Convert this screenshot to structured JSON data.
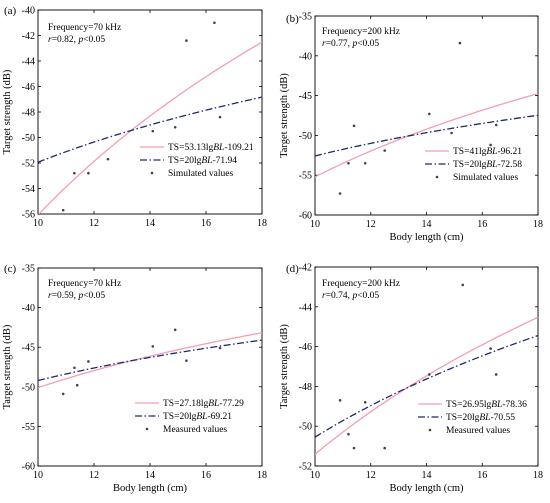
{
  "chart_data": [
    {
      "panel_label": "(a)",
      "type": "scatter",
      "annotations": [
        "Frequency=70 kHz",
        "r=0.82, p<0.05"
      ],
      "xlabel": "",
      "ylabel": "Target strength (dB)",
      "xlim": [
        10,
        18
      ],
      "ylim": [
        -56,
        -40
      ],
      "xticks": [
        10,
        12,
        14,
        16,
        18
      ],
      "yticks": [
        -56,
        -54,
        -52,
        -50,
        -48,
        -46,
        -44,
        -42,
        -40
      ],
      "lines": [
        {
          "name": "TS=53.13lgBL-109.21",
          "slope": 53.13,
          "intercept": -109.21,
          "color": "#f0a0b0",
          "dash": "solid"
        },
        {
          "name": "TS=20lgBL-71.94",
          "slope": 20,
          "intercept": -71.94,
          "color": "#1f2a6b",
          "dash": "dashdot"
        }
      ],
      "points_name": "Simulated values",
      "points": [
        [
          10.9,
          -55.7
        ],
        [
          11.3,
          -52.8
        ],
        [
          11.8,
          -52.8
        ],
        [
          12.5,
          -51.7
        ],
        [
          14.1,
          -49.5
        ],
        [
          14.9,
          -49.2
        ],
        [
          15.3,
          -42.4
        ],
        [
          16.3,
          -41
        ],
        [
          16.5,
          -48.4
        ]
      ],
      "legend_position": "lower-right"
    },
    {
      "panel_label": "(b)",
      "type": "scatter",
      "annotations": [
        "Frequency=200 kHz",
        "r=0.77, p<0.05"
      ],
      "xlabel": "Body length (cm)",
      "ylabel": "Target strength (dB)",
      "xlim": [
        10,
        18
      ],
      "ylim": [
        -60,
        -35
      ],
      "xticks": [
        10,
        12,
        14,
        16,
        18
      ],
      "yticks": [
        -60,
        -55,
        -50,
        -45,
        -40,
        -35
      ],
      "lines": [
        {
          "name": "TS=41lgBL-96.21",
          "slope": 41,
          "intercept": -96.21,
          "color": "#f0a0b0",
          "dash": "solid"
        },
        {
          "name": "TS=20lgBL-72.58",
          "slope": 20,
          "intercept": -72.58,
          "color": "#1f2a6b",
          "dash": "dashdot"
        }
      ],
      "points_name": "Simulated values",
      "points": [
        [
          10.9,
          -57.3
        ],
        [
          11.2,
          -53.5
        ],
        [
          11.4,
          -48.8
        ],
        [
          11.8,
          -53.5
        ],
        [
          12.5,
          -51.9
        ],
        [
          14.1,
          -47.3
        ],
        [
          14.9,
          -49.7
        ],
        [
          15.2,
          -38.4
        ],
        [
          16.3,
          -51.2
        ],
        [
          16.5,
          -48.7
        ]
      ],
      "legend_position": "lower-right"
    },
    {
      "panel_label": "(c)",
      "type": "scatter",
      "annotations": [
        "Frequency=70 kHz",
        "r=0.59, p<0.05"
      ],
      "xlabel": "Body length (cm)",
      "ylabel": "Target strength (dB)",
      "xlim": [
        10,
        18
      ],
      "ylim": [
        -60,
        -35
      ],
      "xticks": [
        10,
        12,
        14,
        16,
        18
      ],
      "yticks": [
        -60,
        -55,
        -50,
        -45,
        -40,
        -35
      ],
      "lines": [
        {
          "name": "TS=27.18lgBL-77.29",
          "slope": 27.18,
          "intercept": -77.29,
          "color": "#f0a0b0",
          "dash": "solid"
        },
        {
          "name": "TS=20lgBL-69.21",
          "slope": 20,
          "intercept": -69.21,
          "color": "#1f2a6b",
          "dash": "dashdot"
        }
      ],
      "points_name": "Measured values",
      "points": [
        [
          10.9,
          -50.9
        ],
        [
          11.3,
          -47.6
        ],
        [
          11.4,
          -49.8
        ],
        [
          11.8,
          -46.8
        ],
        [
          14.1,
          -44.9
        ],
        [
          14.9,
          -42.8
        ],
        [
          15.3,
          -46.7
        ],
        [
          16.5,
          -45.1
        ]
      ],
      "legend_position": "lower-right"
    },
    {
      "panel_label": "(d)",
      "type": "scatter",
      "annotations": [
        "Frequency=200 kHz",
        "r=0.74, p<0.05"
      ],
      "xlabel": "Body length (cm)",
      "ylabel": "Target strength (dB)",
      "xlim": [
        10,
        18
      ],
      "ylim": [
        -52,
        -42
      ],
      "xticks": [
        10,
        12,
        14,
        16,
        18
      ],
      "yticks": [
        -52,
        -50,
        -48,
        -46,
        -44,
        -42
      ],
      "lines": [
        {
          "name": "TS=26.95lgBL-78.36",
          "slope": 26.95,
          "intercept": -78.36,
          "color": "#f0a0b0",
          "dash": "solid"
        },
        {
          "name": "TS=20lgBL-70.55",
          "slope": 20,
          "intercept": -70.55,
          "color": "#1f2a6b",
          "dash": "dashdot"
        }
      ],
      "points_name": "Measured values",
      "points": [
        [
          10.9,
          -48.7
        ],
        [
          11.2,
          -50.4
        ],
        [
          11.4,
          -51.1
        ],
        [
          11.8,
          -48.8
        ],
        [
          12.5,
          -51.1
        ],
        [
          14.1,
          -47.4
        ],
        [
          15.3,
          -42.9
        ],
        [
          16.3,
          -46.1
        ],
        [
          16.5,
          -47.4
        ]
      ],
      "legend_position": "lower-right"
    }
  ]
}
